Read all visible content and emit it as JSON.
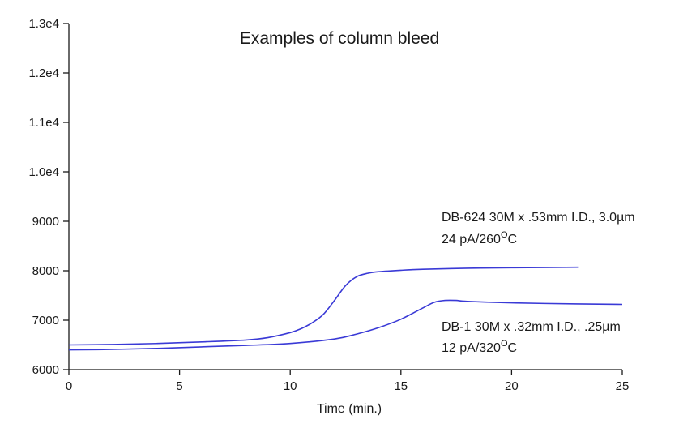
{
  "chart_data": {
    "type": "line",
    "title": "Examples of column bleed",
    "xlabel": "Time (min.)",
    "ylabel": "",
    "xlim": [
      0,
      25
    ],
    "ylim": [
      6000,
      13000
    ],
    "x_ticks": [
      0,
      5,
      10,
      15,
      20,
      25
    ],
    "y_ticks": [
      6000,
      7000,
      8000,
      9000,
      10000,
      11000,
      12000,
      13000
    ],
    "y_tick_labels": [
      "6000",
      "7000",
      "8000",
      "9000",
      "1.0e4",
      "1.1e4",
      "1.2e4",
      "1.3e4"
    ],
    "series": [
      {
        "name": "DB-624 30M x .53mm I.D., 3.0µm",
        "color": "#3a3ad6",
        "x": [
          0,
          2,
          4,
          6,
          8,
          9,
          10,
          10.5,
          11,
          11.5,
          12,
          12.5,
          13,
          13.5,
          14,
          15,
          16,
          18,
          20,
          23
        ],
        "y": [
          6500,
          6510,
          6530,
          6560,
          6600,
          6650,
          6750,
          6830,
          6950,
          7120,
          7400,
          7700,
          7880,
          7950,
          7980,
          8010,
          8030,
          8050,
          8060,
          8070
        ]
      },
      {
        "name": "DB-1 30M x .32mm I.D., .25µm",
        "color": "#3a3ad6",
        "x": [
          0,
          2,
          4,
          6,
          8,
          10,
          12,
          13,
          14,
          15,
          16,
          16.5,
          17,
          17.5,
          18,
          20,
          23,
          25
        ],
        "y": [
          6400,
          6410,
          6430,
          6460,
          6490,
          6530,
          6620,
          6720,
          6850,
          7020,
          7250,
          7360,
          7400,
          7400,
          7380,
          7350,
          7330,
          7320
        ]
      }
    ],
    "annotations": [
      {
        "series_index": 0,
        "line1": "DB-624 30M x .53mm I.D., 3.0µm",
        "line2_prefix": "24 pA/260",
        "line2_sup": "O",
        "line2_suffix": "C"
      },
      {
        "series_index": 1,
        "line1": "DB-1 30M x .32mm I.D., .25µm",
        "line2_prefix": "12 pA/320",
        "line2_sup": "O",
        "line2_suffix": "C"
      }
    ]
  }
}
